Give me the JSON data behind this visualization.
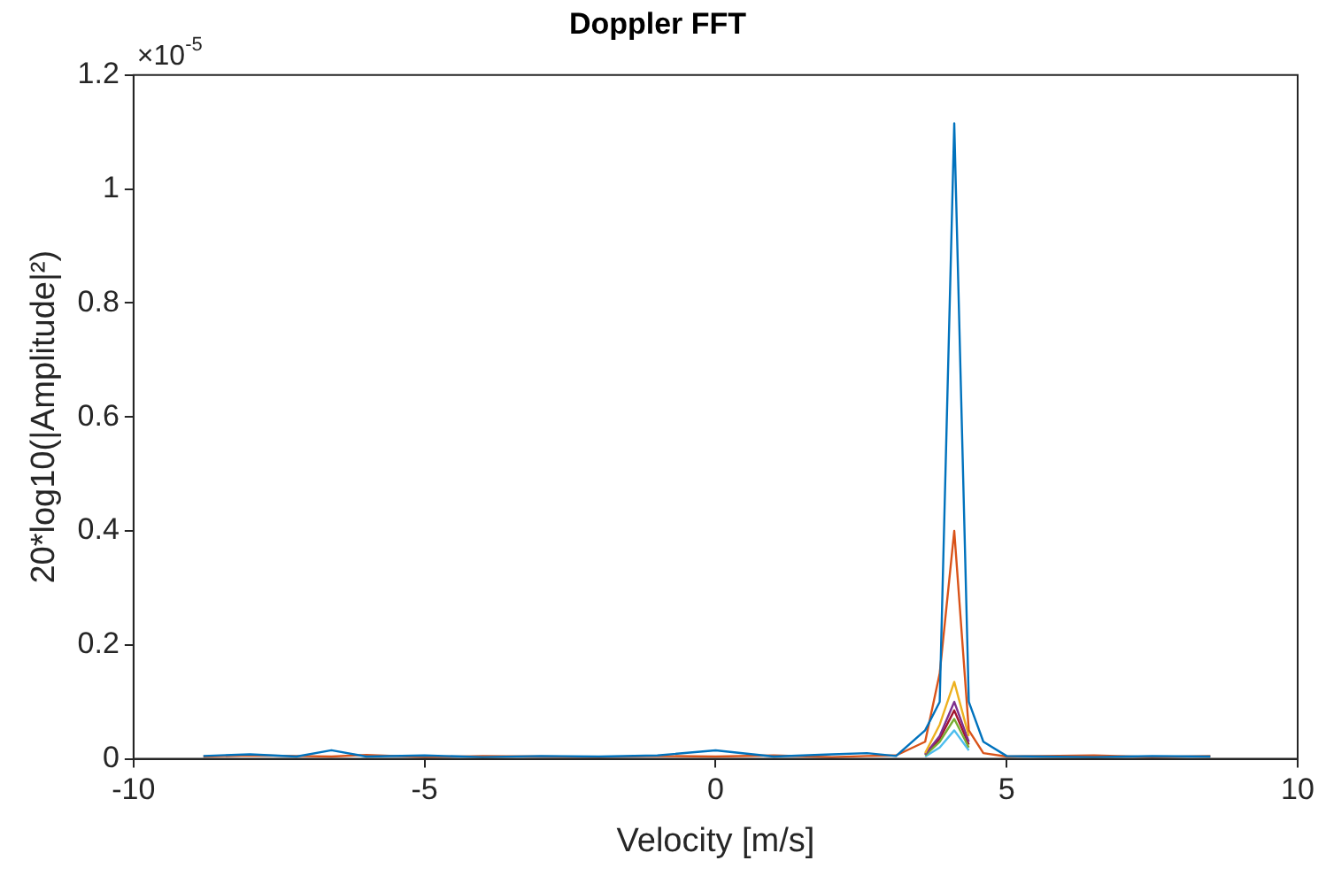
{
  "chart_data": {
    "type": "line",
    "title": "Doppler FFT",
    "xlabel": "Velocity [m/s]",
    "ylabel": "20*log10(|Amplitude|²)",
    "annotations": [
      "×10$^{-5}$"
    ],
    "x": [
      -8.8,
      -8,
      -7.2,
      -6.6,
      -6,
      -5,
      -4,
      -3,
      -2,
      -1,
      0,
      1,
      2,
      2.6,
      3.1,
      3.6,
      3.85,
      4.1,
      4.35,
      4.6,
      5,
      5.6,
      6.5,
      7.5,
      8.5
    ],
    "series": [
      {
        "color": "#0072bd",
        "values": [
          0.005,
          0.008,
          0.004,
          0.015,
          0.004,
          0.006,
          0.003,
          0.005,
          0.004,
          0.006,
          0.015,
          0.004,
          0.008,
          0.01,
          0.005,
          0.05,
          0.1,
          1.115,
          0.1,
          0.03,
          0.005,
          0.004,
          0.003,
          0.005,
          0.004
        ]
      },
      {
        "color": "#d95319",
        "values": [
          0.004,
          0.006,
          0.005,
          0.004,
          0.007,
          0.003,
          0.005,
          0.004,
          0.003,
          0.005,
          0.004,
          0.006,
          0.003,
          0.005,
          0.006,
          0.03,
          0.15,
          0.4,
          0.05,
          0.01,
          0.004,
          0.005,
          0.006,
          0.003,
          0.005
        ]
      },
      {
        "color": "#edb120",
        "x": [
          3.6,
          3.85,
          4.1,
          4.35
        ],
        "values": [
          0.01,
          0.06,
          0.135,
          0.04
        ]
      },
      {
        "color": "#7e2f8e",
        "x": [
          3.6,
          3.85,
          4.1,
          4.35
        ],
        "values": [
          0.008,
          0.04,
          0.1,
          0.03
        ]
      },
      {
        "color": "#77ac30",
        "x": [
          3.6,
          3.85,
          4.1,
          4.35
        ],
        "values": [
          0.006,
          0.03,
          0.07,
          0.02
        ]
      },
      {
        "color": "#4dbeee",
        "x": [
          3.6,
          3.85,
          4.1,
          4.35
        ],
        "values": [
          0.004,
          0.02,
          0.05,
          0.015
        ]
      },
      {
        "color": "#a2142f",
        "x": [
          3.6,
          3.85,
          4.1,
          4.35
        ],
        "values": [
          0.007,
          0.035,
          0.085,
          0.025
        ]
      }
    ],
    "xlim": [
      -10,
      10
    ],
    "xticks": [
      -10,
      -5,
      0,
      5,
      10
    ],
    "ylim": [
      0,
      1.2
    ],
    "yticks": [
      0,
      0.2,
      0.4,
      0.6,
      0.8,
      1,
      1.2
    ],
    "grid": false,
    "legend": false,
    "marker": "none",
    "line_style": "solid"
  }
}
